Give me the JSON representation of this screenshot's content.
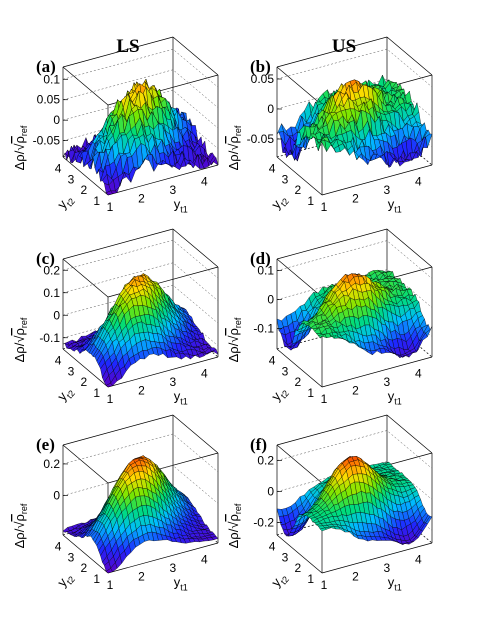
{
  "figure": {
    "columns": [
      "LS",
      "US"
    ]
  },
  "chart_data": [
    {
      "type": "surface",
      "panel": "(a)",
      "column": "LS",
      "zlabel": "Δρ/√ρref",
      "xlabel": "y t1",
      "ylabel": "y t2",
      "x_ticks": [
        "1",
        "2",
        "3",
        "4"
      ],
      "y_ticks": [
        "1",
        "2",
        "3",
        "4"
      ],
      "z_ticks": [
        "0.1",
        "0.05",
        "0",
        "-0.05"
      ],
      "xlim": [
        1,
        4.5
      ],
      "ylim": [
        1,
        4.5
      ],
      "zlim": [
        -0.09,
        0.13
      ],
      "shape": "diagonal ridge, peak near (2.6,2.6)",
      "peak": 0.1,
      "corner_min": -0.08,
      "noise": 0.02
    },
    {
      "type": "surface",
      "panel": "(b)",
      "column": "US",
      "zlabel": "Δρ/√ρref",
      "xlabel": "y t1",
      "ylabel": "y t2",
      "x_ticks": [
        "1",
        "2",
        "3",
        "4"
      ],
      "y_ticks": [
        "1",
        "2",
        "3",
        "4"
      ],
      "z_ticks": [
        "0.05",
        "0",
        "-0.05"
      ],
      "xlim": [
        1,
        4.5
      ],
      "ylim": [
        1,
        4.5
      ],
      "zlim": [
        -0.08,
        0.07
      ],
      "shape": "central peak with deep dips at low-y corners",
      "peak": 0.05,
      "corner_min": -0.07,
      "noise": 0.012
    },
    {
      "type": "surface",
      "panel": "(c)",
      "column": "LS",
      "zlabel": "Δρ/√ρref",
      "xlabel": "y t1",
      "ylabel": "y t2",
      "x_ticks": [
        "1",
        "2",
        "3",
        "4"
      ],
      "y_ticks": [
        "1",
        "2",
        "3",
        "4"
      ],
      "z_ticks": [
        "0.2",
        "0.1",
        "0",
        "-0.1"
      ],
      "xlim": [
        1,
        4.5
      ],
      "ylim": [
        1,
        4.5
      ],
      "zlim": [
        -0.15,
        0.25
      ],
      "shape": "diagonal ridge, peak near (2.6,2.6)",
      "peak": 0.2,
      "corner_min": -0.13,
      "noise": 0.01
    },
    {
      "type": "surface",
      "panel": "(d)",
      "column": "US",
      "zlabel": "Δρ/√ρref",
      "xlabel": "y t1",
      "ylabel": "y t2",
      "x_ticks": [
        "1",
        "2",
        "3",
        "4"
      ],
      "y_ticks": [
        "1",
        "2",
        "3",
        "4"
      ],
      "z_ticks": [
        "0.1",
        "0",
        "-0.1"
      ],
      "xlim": [
        1,
        4.5
      ],
      "ylim": [
        1,
        4.5
      ],
      "zlim": [
        -0.17,
        0.14
      ],
      "shape": "central peak with deep dips at low-y corners",
      "peak": 0.11,
      "corner_min": -0.15,
      "noise": 0.01
    },
    {
      "type": "surface",
      "panel": "(e)",
      "column": "LS",
      "zlabel": "Δρ/√ρref",
      "xlabel": "y t1",
      "ylabel": "y t2",
      "x_ticks": [
        "1",
        "2",
        "3",
        "4"
      ],
      "y_ticks": [
        "1",
        "2",
        "3",
        "4"
      ],
      "z_ticks": [
        "0.2",
        "0"
      ],
      "xlim": [
        1,
        4.5
      ],
      "ylim": [
        1,
        4.5
      ],
      "zlim": [
        -0.25,
        0.32
      ],
      "shape": "sharp diagonal peak near (2.6,2.6)",
      "peak": 0.28,
      "corner_min": -0.22,
      "noise": 0.008
    },
    {
      "type": "surface",
      "panel": "(f)",
      "column": "US",
      "zlabel": "Δρ/√ρref",
      "xlabel": "y t1",
      "ylabel": "y t2",
      "x_ticks": [
        "1",
        "2",
        "3",
        "4"
      ],
      "y_ticks": [
        "1",
        "2",
        "3",
        "4"
      ],
      "z_ticks": [
        "0.2",
        "0",
        "-0.2"
      ],
      "xlim": [
        1,
        4.5
      ],
      "ylim": [
        1,
        4.5
      ],
      "zlim": [
        -0.28,
        0.3
      ],
      "shape": "central peak with dips at low-y corners",
      "peak": 0.27,
      "corner_min": -0.25,
      "noise": 0.008
    }
  ]
}
